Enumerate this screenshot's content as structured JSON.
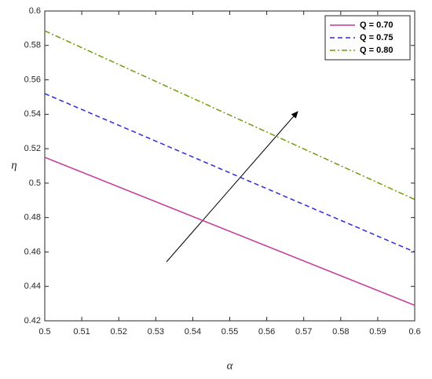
{
  "chart_data": {
    "type": "line",
    "x_label": "α",
    "y_label": "η",
    "x": [
      0.5,
      0.55,
      0.6
    ],
    "series": [
      {
        "name": "Q = 0.70",
        "color": "#c2389b",
        "linestyle": "solid",
        "values": [
          0.515,
          0.472,
          0.429
        ]
      },
      {
        "name": "Q = 0.75",
        "color": "#2b2bdc",
        "linestyle": "dashed",
        "values": [
          0.552,
          0.506,
          0.46
        ]
      },
      {
        "name": "Q = 0.80",
        "color": "#6f9a0c",
        "linestyle": "dashdot",
        "values": [
          0.5885,
          0.5395,
          0.4905
        ]
      }
    ],
    "xlim": [
      0.5,
      0.6
    ],
    "xticks": [
      0.5,
      0.51,
      0.52,
      0.53,
      0.54,
      0.55,
      0.56,
      0.57,
      0.58,
      0.59,
      0.6
    ],
    "ylim": [
      0.42,
      0.6
    ],
    "yticks": [
      0.42,
      0.44,
      0.46,
      0.48,
      0.5,
      0.52,
      0.54,
      0.56,
      0.58,
      0.6
    ],
    "grid": false,
    "legend": "top-right"
  }
}
